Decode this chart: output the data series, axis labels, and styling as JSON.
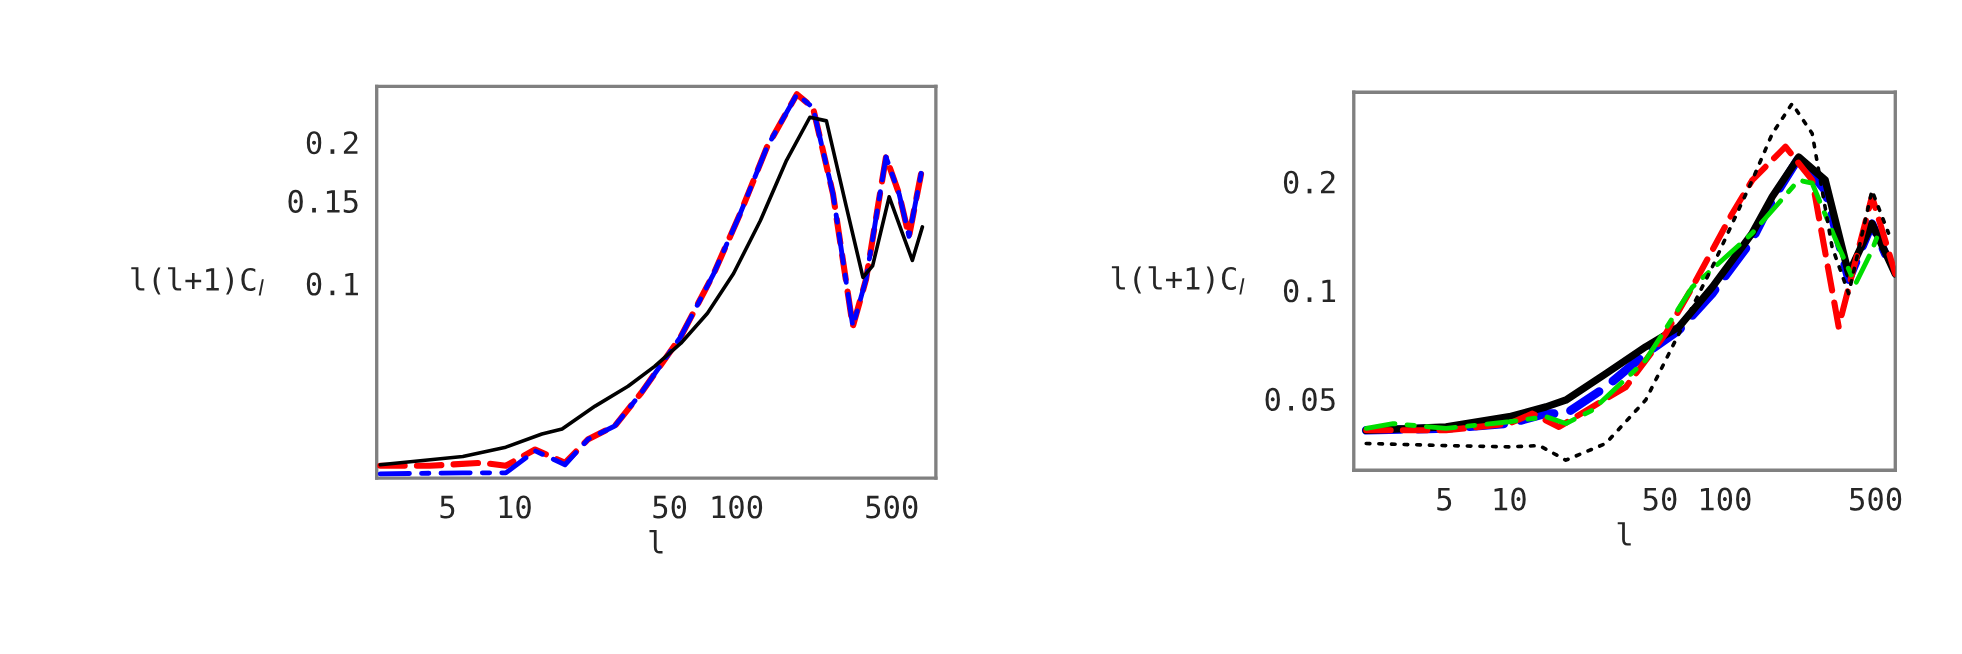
{
  "chart_data": [
    {
      "type": "line",
      "xlabel": "l",
      "ylabel": "l(l+1)C$_{l}$",
      "log": "xy",
      "grid": false,
      "legend": false,
      "marker": "none",
      "xlim": [
        2.4,
        790
      ],
      "ylim": [
        0.0385,
        0.263
      ],
      "xticks": [
        5,
        10,
        50,
        100,
        500
      ],
      "yticks": [
        0.1,
        0.15,
        0.2
      ],
      "series": [
        {
          "color": "#000000",
          "line_style": "solid",
          "x": [
            2.49,
            5.86,
            9.15,
            13.3,
            16.4,
            23.1,
            32.5,
            42.8,
            56.2,
            74,
            97,
            128,
            168,
            214,
            254,
            312,
            371,
            410,
            487,
            558,
            619,
            687
          ],
          "values": [
            0.0411,
            0.0428,
            0.0448,
            0.0478,
            0.049,
            0.0548,
            0.0604,
            0.0666,
            0.0746,
            0.0864,
            0.105,
            0.136,
            0.183,
            0.226,
            0.222,
            0.146,
            0.103,
            0.109,
            0.153,
            0.128,
            0.112,
            0.132
          ]
        },
        {
          "color": "#0000ff",
          "line_style": "dashdot",
          "x": [
            2.49,
            5.86,
            9.15,
            12.4,
            16.9,
            21.5,
            28.3,
            37.3,
            56.2,
            79,
            104,
            137,
            187,
            221,
            272,
            334,
            383,
            471,
            540,
            598,
            687
          ],
          "values": [
            0.0393,
            0.0395,
            0.0395,
            0.044,
            0.0411,
            0.0466,
            0.0497,
            0.0585,
            0.0771,
            0.105,
            0.141,
            0.195,
            0.253,
            0.237,
            0.155,
            0.081,
            0.102,
            0.186,
            0.155,
            0.126,
            0.177
          ]
        },
        {
          "color": "#ff0000",
          "line_style": "dashed",
          "x": [
            2.49,
            4.16,
            7.2,
            9.15,
            12.4,
            16.9,
            21.5,
            28.3,
            37.3,
            56.2,
            79,
            104,
            137,
            187,
            221,
            272,
            334,
            383,
            471,
            540,
            598,
            687
          ],
          "values": [
            0.0409,
            0.0409,
            0.0415,
            0.0409,
            0.0443,
            0.0415,
            0.0466,
            0.0497,
            0.0585,
            0.0771,
            0.105,
            0.141,
            0.195,
            0.253,
            0.237,
            0.155,
            0.081,
            0.102,
            0.186,
            0.155,
            0.126,
            0.177
          ]
        }
      ]
    },
    {
      "type": "line",
      "xlabel": "l",
      "ylabel": "l(l+1)C$_{l}$",
      "log": "xy",
      "grid": false,
      "legend": false,
      "marker": "none",
      "xlim": [
        1.9,
        617
      ],
      "ylim": [
        0.0317,
        0.354
      ],
      "xticks": [
        5,
        10,
        50,
        100,
        500
      ],
      "yticks": [
        0.05,
        0.1,
        0.2
      ],
      "series": [
        {
          "color": "#000000",
          "line_style": "dotted",
          "x": [
            2.17,
            5.09,
            10,
            13.8,
            18.3,
            28,
            42.9,
            61.2,
            87.4,
            134,
            166,
            205,
            254,
            314,
            375,
            481,
            574
          ],
          "values": [
            0.0376,
            0.0371,
            0.0368,
            0.0371,
            0.0338,
            0.0376,
            0.0496,
            0.0758,
            0.116,
            0.202,
            0.272,
            0.329,
            0.272,
            0.132,
            0.0979,
            0.189,
            0.144
          ]
        },
        {
          "color": "#00dd00",
          "line_style": "dashdot",
          "x": [
            2.17,
            2.89,
            5.09,
            10,
            14.8,
            18.3,
            24.3,
            42.9,
            70.6,
            134,
            220,
            254,
            337,
            403,
            481,
            516
          ],
          "values": [
            0.0414,
            0.0427,
            0.0414,
            0.0432,
            0.0446,
            0.0427,
            0.0465,
            0.064,
            0.102,
            0.144,
            0.202,
            0.198,
            0.132,
            0.104,
            0.129,
            0.144
          ]
        },
        {
          "color": "#ff0000",
          "line_style": "dashed",
          "x": [
            2.17,
            5.09,
            10,
            12.8,
            17,
            24.3,
            34.7,
            53.1,
            70.6,
            108,
            134,
            191,
            254,
            337,
            481,
            617
          ],
          "values": [
            0.0409,
            0.0409,
            0.0427,
            0.0455,
            0.0418,
            0.0475,
            0.0539,
            0.0758,
            0.102,
            0.163,
            0.202,
            0.25,
            0.202,
            0.0792,
            0.182,
            0.111
          ]
        },
        {
          "color": "#000000",
          "line_style": "solid",
          "x": [
            2.17,
            5.09,
            10,
            14.8,
            18.3,
            28,
            42.9,
            61.2,
            87.4,
            134,
            166,
            220,
            292,
            375,
            481,
            617
          ],
          "values": [
            0.0409,
            0.0418,
            0.0446,
            0.0475,
            0.0496,
            0.0587,
            0.0697,
            0.0792,
            0.102,
            0.144,
            0.182,
            0.234,
            0.202,
            0.111,
            0.153,
            0.111
          ]
        },
        {
          "color": "#0000ff",
          "line_style": "dashed",
          "x": [
            2.17,
            5.09,
            10,
            14.8,
            18.3,
            28,
            42.9,
            61.2,
            87.4,
            134,
            166,
            220,
            292,
            375,
            481,
            555
          ],
          "values": [
            0.0409,
            0.0414,
            0.0427,
            0.0455,
            0.0455,
            0.0539,
            0.0667,
            0.0775,
            0.0979,
            0.138,
            0.178,
            0.233,
            0.189,
            0.107,
            0.153,
            0.126
          ]
        }
      ]
    }
  ]
}
